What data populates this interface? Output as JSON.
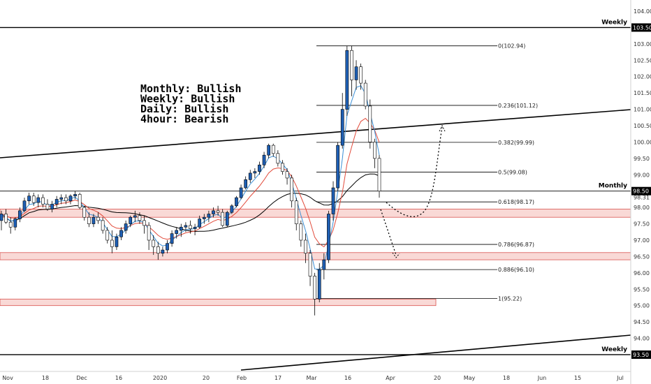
{
  "chart_data": {
    "type": "candlestick",
    "y_ticks": [
      "104.00",
      "103.50",
      "103.00",
      "102.50",
      "102.00",
      "101.50",
      "101.00",
      "100.50",
      "100.00",
      "99.50",
      "99.00",
      "98.50",
      "98.31",
      "98.00",
      "97.50",
      "97.00",
      "96.50",
      "96.00",
      "95.50",
      "95.00",
      "94.50",
      "94.00",
      "93.50"
    ],
    "x_ticks": [
      "Nov",
      "18",
      "Dec",
      "16",
      "2020",
      "20",
      "Feb",
      "17",
      "Mar",
      "16",
      "Apr",
      "20",
      "May",
      "18",
      "Jun",
      "15",
      "Jul"
    ],
    "ylim": [
      93.35,
      104.15
    ],
    "price_tags": [
      {
        "value": 103.5,
        "text": "103.50",
        "bg": "#000000"
      },
      {
        "value": 98.5,
        "text": "98.50",
        "bg": "#000000"
      },
      {
        "value": 93.5,
        "text": "93.50",
        "bg": "#000000"
      }
    ],
    "horizontal_lines": [
      {
        "value": 103.5,
        "label": "Weekly"
      },
      {
        "value": 98.5,
        "label": "Monthly"
      },
      {
        "value": 93.5,
        "label": "Weekly"
      }
    ],
    "fibonacci": [
      {
        "value": 102.94,
        "text": "0(102.94)"
      },
      {
        "value": 101.12,
        "text": "0.236(101.12)"
      },
      {
        "value": 99.99,
        "text": "0.382(99.99)"
      },
      {
        "value": 99.08,
        "text": "0.5(99.08)"
      },
      {
        "value": 98.17,
        "text": "0.618(98.17)"
      },
      {
        "value": 96.87,
        "text": "0.786(96.87)"
      },
      {
        "value": 96.1,
        "text": "0.886(96.10)"
      },
      {
        "value": 95.22,
        "text": "1(95.22)"
      }
    ],
    "zones": [
      {
        "low": 97.7,
        "high": 97.95
      },
      {
        "low": 96.4,
        "high": 96.62
      },
      {
        "low": 95.0,
        "high": 95.2
      }
    ],
    "annotation_lines": [
      "Monthly: Bullish",
      "Weekly: Bullish",
      "Daily: Bullish",
      "4hour: Bearish"
    ],
    "colors": {
      "up": "#1e5fb4",
      "down": "#ffffff",
      "ema_fast": "#3a8fd6",
      "ema_slow": "#e24b3b",
      "sma": "#000000",
      "zone_fill": "#f9d9d6",
      "zone_stroke": "#d9534f"
    },
    "candles": [
      [
        97.6,
        97.9,
        97.3,
        97.8
      ],
      [
        97.8,
        97.95,
        97.5,
        97.55
      ],
      [
        97.55,
        97.7,
        97.2,
        97.4
      ],
      [
        97.4,
        97.7,
        97.3,
        97.65
      ],
      [
        97.65,
        98.0,
        97.55,
        97.9
      ],
      [
        97.9,
        98.3,
        97.85,
        98.2
      ],
      [
        98.2,
        98.45,
        98.1,
        98.35
      ],
      [
        98.35,
        98.45,
        98.05,
        98.15
      ],
      [
        98.15,
        98.4,
        98.0,
        98.3
      ],
      [
        98.3,
        98.4,
        98.0,
        98.1
      ],
      [
        98.1,
        98.25,
        97.9,
        97.95
      ],
      [
        97.95,
        98.2,
        97.85,
        98.1
      ],
      [
        98.1,
        98.35,
        98.0,
        98.25
      ],
      [
        98.25,
        98.4,
        98.1,
        98.3
      ],
      [
        98.3,
        98.4,
        98.1,
        98.2
      ],
      [
        98.2,
        98.4,
        98.1,
        98.35
      ],
      [
        98.35,
        98.5,
        98.25,
        98.4
      ],
      [
        98.4,
        98.45,
        97.95,
        98.0
      ],
      [
        98.0,
        98.05,
        97.6,
        97.7
      ],
      [
        97.7,
        97.85,
        97.4,
        97.5
      ],
      [
        97.5,
        97.8,
        97.4,
        97.7
      ],
      [
        97.7,
        97.85,
        97.5,
        97.6
      ],
      [
        97.6,
        97.7,
        97.2,
        97.3
      ],
      [
        97.3,
        97.4,
        96.9,
        97.0
      ],
      [
        97.0,
        97.3,
        96.6,
        96.8
      ],
      [
        96.8,
        97.2,
        96.7,
        97.1
      ],
      [
        97.1,
        97.4,
        97.0,
        97.3
      ],
      [
        97.3,
        97.6,
        97.2,
        97.5
      ],
      [
        97.5,
        97.75,
        97.4,
        97.7
      ],
      [
        97.7,
        97.9,
        97.55,
        97.75
      ],
      [
        97.75,
        97.85,
        97.5,
        97.6
      ],
      [
        97.6,
        97.75,
        97.2,
        97.45
      ],
      [
        97.45,
        97.55,
        96.7,
        97.0
      ],
      [
        97.0,
        97.15,
        96.55,
        96.8
      ],
      [
        96.8,
        96.95,
        96.4,
        96.6
      ],
      [
        96.6,
        96.8,
        96.5,
        96.7
      ],
      [
        96.7,
        97.0,
        96.6,
        96.9
      ],
      [
        96.9,
        97.3,
        96.8,
        97.2
      ],
      [
        97.2,
        97.4,
        97.05,
        97.3
      ],
      [
        97.3,
        97.5,
        97.1,
        97.4
      ],
      [
        97.4,
        97.55,
        97.25,
        97.45
      ],
      [
        97.45,
        97.6,
        97.2,
        97.35
      ],
      [
        97.35,
        97.5,
        97.15,
        97.4
      ],
      [
        97.4,
        97.75,
        97.35,
        97.65
      ],
      [
        97.65,
        97.8,
        97.5,
        97.7
      ],
      [
        97.7,
        97.9,
        97.55,
        97.8
      ],
      [
        97.8,
        98.0,
        97.7,
        97.9
      ],
      [
        97.9,
        98.05,
        97.75,
        97.85
      ],
      [
        97.85,
        97.95,
        97.4,
        97.45
      ],
      [
        97.45,
        97.9,
        97.4,
        97.85
      ],
      [
        97.85,
        98.1,
        97.8,
        98.05
      ],
      [
        98.05,
        98.35,
        98.0,
        98.3
      ],
      [
        98.3,
        98.7,
        98.25,
        98.6
      ],
      [
        98.6,
        98.95,
        98.55,
        98.85
      ],
      [
        98.85,
        99.15,
        98.75,
        99.05
      ],
      [
        99.05,
        99.2,
        98.9,
        99.1
      ],
      [
        99.1,
        99.4,
        99.0,
        99.3
      ],
      [
        99.3,
        99.7,
        99.2,
        99.6
      ],
      [
        99.6,
        99.95,
        99.5,
        99.9
      ],
      [
        99.9,
        99.95,
        99.55,
        99.65
      ],
      [
        99.65,
        99.75,
        99.25,
        99.35
      ],
      [
        99.35,
        99.45,
        99.0,
        99.1
      ],
      [
        99.1,
        99.2,
        98.7,
        98.9
      ],
      [
        98.9,
        99.0,
        98.0,
        98.2
      ],
      [
        98.2,
        98.3,
        97.3,
        97.5
      ],
      [
        97.5,
        97.6,
        96.8,
        97.0
      ],
      [
        97.0,
        97.2,
        96.3,
        96.6
      ],
      [
        96.6,
        96.7,
        95.6,
        95.9
      ],
      [
        95.9,
        96.0,
        94.7,
        95.2
      ],
      [
        95.2,
        96.3,
        95.1,
        96.1
      ],
      [
        96.1,
        96.6,
        95.8,
        96.4
      ],
      [
        96.4,
        97.9,
        96.3,
        97.8
      ],
      [
        97.8,
        98.8,
        97.6,
        98.6
      ],
      [
        98.6,
        100.0,
        98.5,
        99.9
      ],
      [
        99.9,
        101.5,
        99.8,
        101.0
      ],
      [
        101.0,
        102.94,
        100.8,
        102.8
      ],
      [
        102.8,
        102.94,
        101.4,
        101.9
      ],
      [
        101.9,
        102.5,
        101.6,
        102.3
      ],
      [
        102.3,
        102.4,
        101.6,
        101.8
      ],
      [
        101.8,
        101.9,
        101.0,
        101.1
      ],
      [
        101.1,
        101.3,
        99.8,
        100.0
      ],
      [
        100.0,
        100.1,
        99.2,
        99.5
      ],
      [
        99.5,
        99.6,
        98.3,
        98.5
      ]
    ]
  }
}
